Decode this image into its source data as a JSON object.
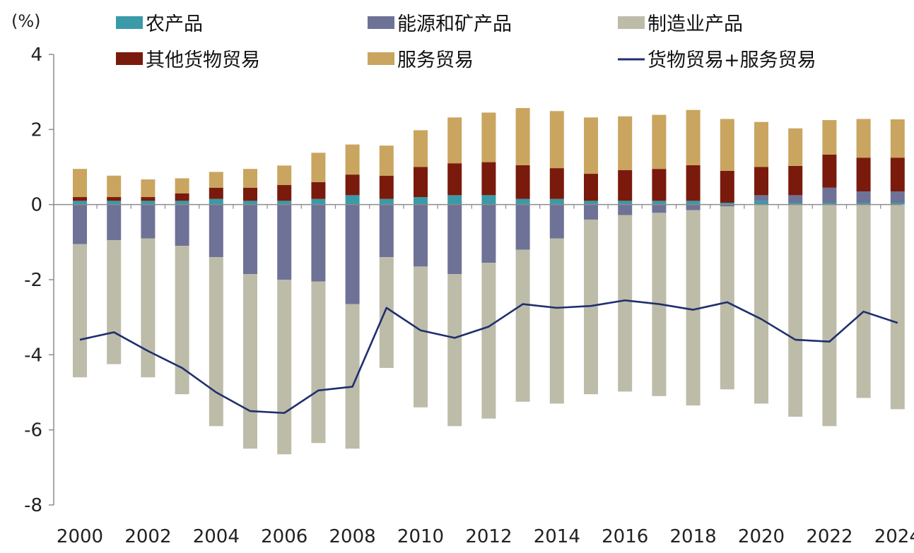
{
  "chart_data": {
    "type": "bar",
    "stacked": true,
    "title": "",
    "ylabel": "(%)",
    "xlabel": "",
    "ylim": [
      -8,
      4
    ],
    "yticks": [
      4,
      2,
      0,
      -2,
      -4,
      -6,
      -8
    ],
    "ytick_labels": [
      "4",
      "2",
      "0",
      "-2",
      "-4",
      "-6",
      "-8"
    ],
    "categories": [
      "2000",
      "2001",
      "2002",
      "2003",
      "2004",
      "2005",
      "2006",
      "2007",
      "2008",
      "2009",
      "2010",
      "2011",
      "2012",
      "2013",
      "2014",
      "2015",
      "2016",
      "2017",
      "2018",
      "2019",
      "2020",
      "2021",
      "2022",
      "2023",
      "2024"
    ],
    "xtick_labels": [
      "2000",
      "2002",
      "2004",
      "2006",
      "2008",
      "2010",
      "2012",
      "2014",
      "2016",
      "2018",
      "2020",
      "2022",
      "2024"
    ],
    "legend_position": "top",
    "series": [
      {
        "name": "农产品",
        "color": "#3a9aa8",
        "kind": "bar",
        "values": [
          0.1,
          0.1,
          0.1,
          0.1,
          0.15,
          0.1,
          0.1,
          0.15,
          0.25,
          0.15,
          0.2,
          0.25,
          0.25,
          0.15,
          0.15,
          0.1,
          0.1,
          0.1,
          0.1,
          0.05,
          0.1,
          0.05,
          0.05,
          0.05,
          0.05
        ]
      },
      {
        "name": "能源和矿产品",
        "color": "#6e7296",
        "kind": "bar",
        "values": [
          -1.05,
          -0.95,
          -0.9,
          -1.1,
          -1.4,
          -1.85,
          -2.0,
          -2.05,
          -2.65,
          -1.4,
          -1.65,
          -1.85,
          -1.55,
          -1.2,
          -0.9,
          -0.4,
          -0.28,
          -0.22,
          -0.15,
          -0.05,
          0.15,
          0.2,
          0.4,
          0.3,
          0.3
        ]
      },
      {
        "name": "制造业产品",
        "color": "#bdbca9",
        "kind": "bar",
        "values": [
          -3.55,
          -3.3,
          -3.7,
          -3.95,
          -4.5,
          -4.65,
          -4.65,
          -4.3,
          -3.85,
          -2.95,
          -3.75,
          -4.05,
          -4.15,
          -4.05,
          -4.4,
          -4.65,
          -4.7,
          -4.88,
          -5.2,
          -4.87,
          -5.3,
          -5.65,
          -5.9,
          -5.15,
          -5.45
        ]
      },
      {
        "name": "其他货物贸易",
        "color": "#7a1a0c",
        "kind": "bar",
        "values": [
          0.1,
          0.1,
          0.1,
          0.2,
          0.3,
          0.35,
          0.42,
          0.45,
          0.55,
          0.62,
          0.8,
          0.85,
          0.88,
          0.9,
          0.82,
          0.72,
          0.82,
          0.85,
          0.95,
          0.85,
          0.75,
          0.78,
          0.88,
          0.9,
          0.9
        ]
      },
      {
        "name": "服务贸易",
        "color": "#c9a55f",
        "kind": "bar",
        "values": [
          0.75,
          0.57,
          0.47,
          0.4,
          0.42,
          0.5,
          0.52,
          0.78,
          0.8,
          0.8,
          0.98,
          1.22,
          1.32,
          1.52,
          1.52,
          1.5,
          1.43,
          1.44,
          1.47,
          1.38,
          1.2,
          1.0,
          0.92,
          1.03,
          1.02
        ]
      },
      {
        "name": "货物贸易+服务贸易",
        "color": "#1f2f6e",
        "kind": "line",
        "values": [
          -3.6,
          -3.4,
          -3.9,
          -4.35,
          -5.0,
          -5.5,
          -5.55,
          -4.95,
          -4.85,
          -2.75,
          -3.35,
          -3.55,
          -3.25,
          -2.65,
          -2.75,
          -2.7,
          -2.55,
          -2.65,
          -2.8,
          -2.6,
          -3.05,
          -3.6,
          -3.65,
          -2.85,
          -3.15
        ]
      }
    ]
  }
}
